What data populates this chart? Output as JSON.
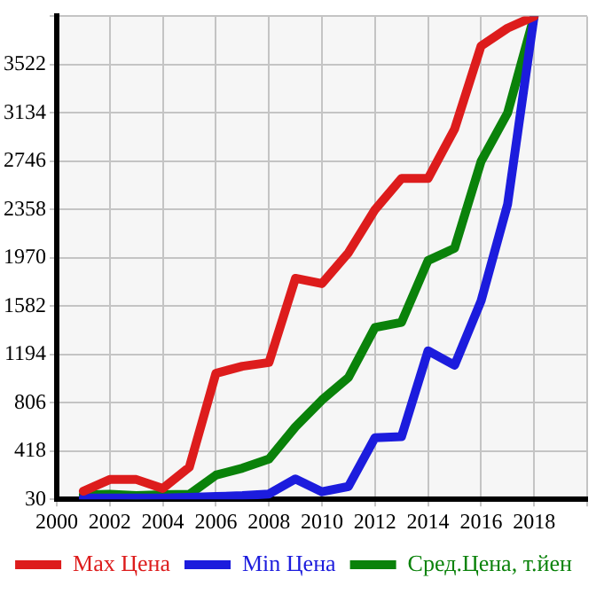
{
  "chart_data": {
    "type": "line",
    "x": [
      2001,
      2002,
      2003,
      2004,
      2005,
      2006,
      2007,
      2008,
      2009,
      2010,
      2011,
      2012,
      2013,
      2014,
      2015,
      2016,
      2017,
      2018
    ],
    "series": [
      {
        "name": "Max Цена",
        "color": "#dd1c1c",
        "values": [
          95,
          189,
          189,
          117,
          289,
          1042,
          1099,
          1129,
          1805,
          1763,
          2012,
          2357,
          2607,
          2607,
          3004,
          3672,
          3815,
          3910
        ]
      },
      {
        "name": "Min Цена",
        "color": "#1c1cdd",
        "values": [
          40,
          40,
          40,
          40,
          45,
          52,
          60,
          73,
          194,
          91,
          133,
          525,
          534,
          1223,
          1107,
          1624,
          2400,
          3910
        ]
      },
      {
        "name": "Сред.Цена, т.йен",
        "color": "#0a820a",
        "values": [
          65,
          70,
          60,
          67,
          70,
          224,
          280,
          353,
          612,
          828,
          1009,
          1410,
          1452,
          1948,
          2047,
          2745,
          3134,
          3910
        ]
      }
    ],
    "xlim": [
      2000,
      2020
    ],
    "xticks": [
      2000,
      2002,
      2004,
      2006,
      2008,
      2010,
      2012,
      2014,
      2016,
      2018,
      {
        "value": 2020,
        "label": null
      }
    ],
    "ylim": [
      30,
      3910
    ],
    "yticks": [
      30,
      418,
      806,
      1194,
      1582,
      1970,
      2358,
      2746,
      3134,
      3522,
      {
        "value": 3910,
        "label": null
      }
    ],
    "grid": true,
    "legend": "bottom",
    "marker": "none",
    "line_style": "solid"
  }
}
